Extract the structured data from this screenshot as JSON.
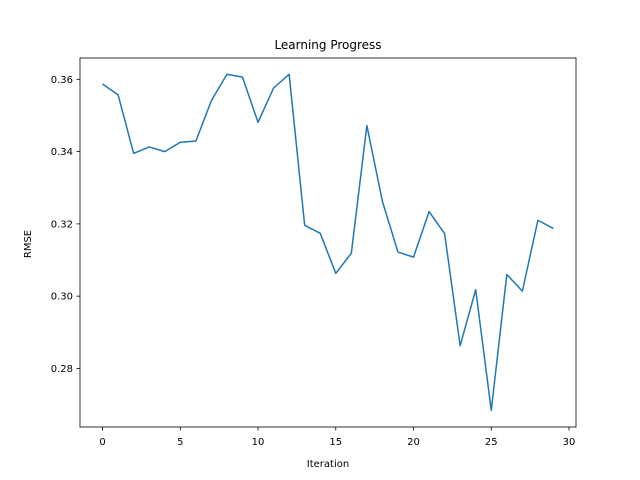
{
  "chart_data": {
    "type": "line",
    "title": "Learning Progress",
    "xlabel": "Iteration",
    "ylabel": "RMSE",
    "xlim": [
      -1.45,
      30.45
    ],
    "ylim": [
      0.2638,
      0.3659
    ],
    "xticks": [
      0,
      5,
      10,
      15,
      20,
      25,
      30
    ],
    "yticks": [
      0.28,
      0.3,
      0.32,
      0.34,
      0.36
    ],
    "ytick_labels": [
      "0.28",
      "0.30",
      "0.32",
      "0.34",
      "0.36"
    ],
    "grid": false,
    "series": [
      {
        "color": "#1f77b4",
        "x": [
          0,
          1,
          2,
          3,
          4,
          5,
          6,
          7,
          8,
          9,
          10,
          11,
          12,
          13,
          14,
          15,
          16,
          17,
          18,
          19,
          20,
          21,
          22,
          23,
          24,
          25,
          26,
          27,
          28,
          29
        ],
        "values": [
          0.3587,
          0.3557,
          0.3395,
          0.3413,
          0.34,
          0.3426,
          0.3429,
          0.3541,
          0.3614,
          0.3606,
          0.3481,
          0.3576,
          0.3614,
          0.3196,
          0.3174,
          0.3063,
          0.3119,
          0.3472,
          0.3262,
          0.3122,
          0.3108,
          0.3234,
          0.3173,
          0.2863,
          0.3018,
          0.2684,
          0.306,
          0.3014,
          0.321,
          0.3187
        ]
      }
    ]
  }
}
